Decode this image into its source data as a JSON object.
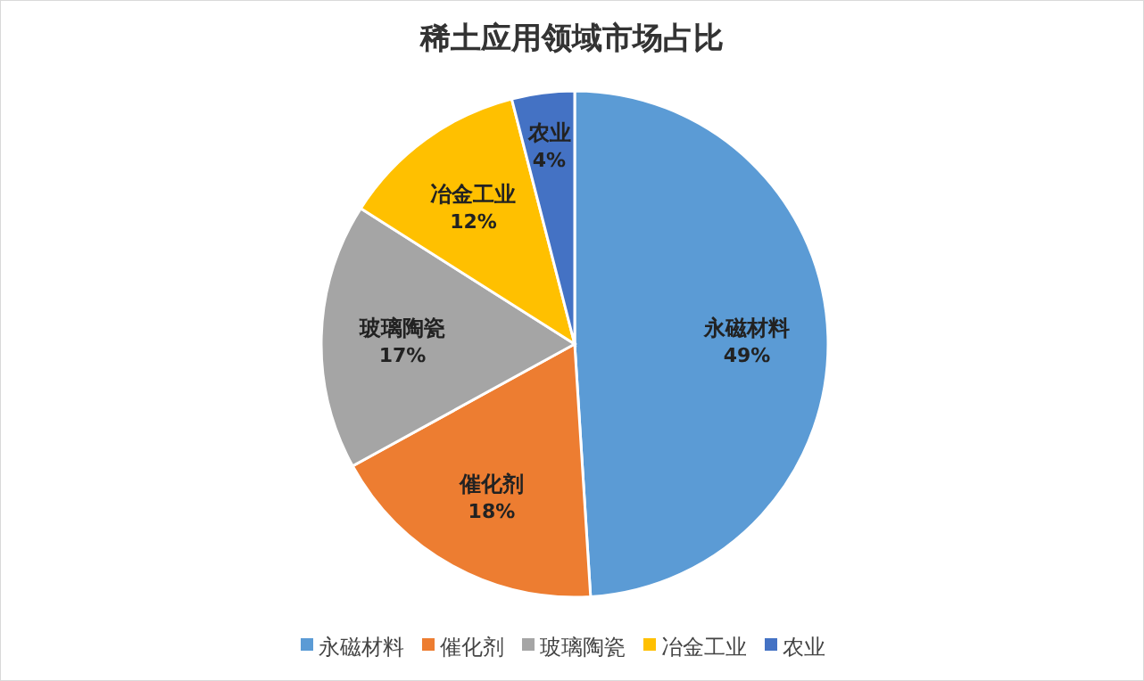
{
  "chart_data": {
    "type": "pie",
    "title": "稀土应用领域市场占比",
    "categories": [
      "永磁材料",
      "催化剂",
      "玻璃陶瓷",
      "冶金工业",
      "农业"
    ],
    "values": [
      49,
      18,
      17,
      12,
      4
    ],
    "colors": [
      "#5b9bd5",
      "#ed7d31",
      "#a5a5a5",
      "#ffc000",
      "#4472c4"
    ],
    "value_labels": [
      "49%",
      "18%",
      "17%",
      "12%",
      "4%"
    ],
    "legend": "bottom"
  }
}
